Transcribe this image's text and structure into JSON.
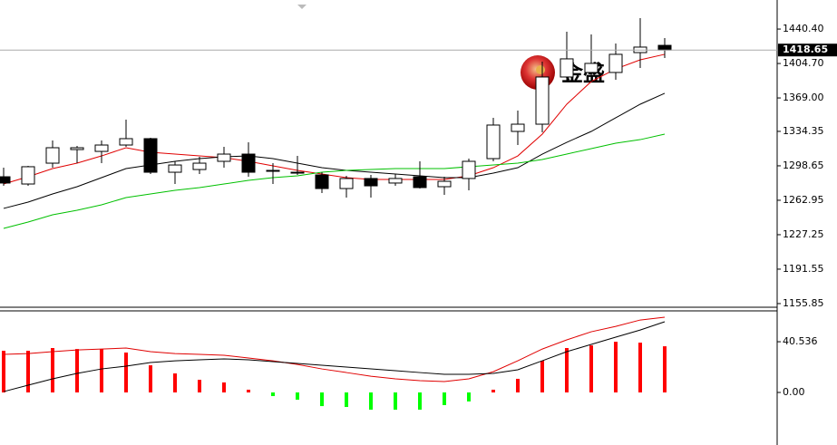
{
  "chart_data": [
    {
      "type": "candlestick",
      "watermark": "金盛",
      "last_price": 1418.65,
      "ylim": [
        1153,
        1463
      ],
      "yticks": [
        {
          "value": 1440.4,
          "label": "1440.40"
        },
        {
          "value": 1404.7,
          "label": "1404.70"
        },
        {
          "value": 1369,
          "label": "1369.00"
        },
        1334.35,
        1298.65,
        1262.95,
        1227.25,
        1191.55,
        1155.85
      ],
      "open": [
        1287.3,
        1279.8,
        1301.4,
        1315.5,
        1313.6,
        1320.2,
        1326.8,
        1292.0,
        1294.8,
        1303.3,
        1310.8,
        1293.0,
        1292.0,
        1289.2,
        1275.1,
        1285.5,
        1280.8,
        1287.3,
        1277.0,
        1285.5,
        1306.1,
        1334.3,
        1341.8,
        1390.7,
        1395.4,
        1395.4,
        1416.0,
        1423.5
      ],
      "high": [
        1296.7,
        1298.6,
        1324.9,
        1319.3,
        1324.9,
        1346.5,
        1327.7,
        1303.3,
        1308.0,
        1318.3,
        1323.0,
        1301.4,
        1308.9,
        1292.0,
        1288.3,
        1289.2,
        1290.2,
        1303.3,
        1287.3,
        1306.1,
        1348.4,
        1355.9,
        1406.6,
        1437.6,
        1434.8,
        1425.4,
        1451.7,
        1431.1
      ],
      "low": [
        1277.9,
        1277.9,
        1296.7,
        1301.4,
        1301.4,
        1318.3,
        1290.2,
        1279.8,
        1290.2,
        1296.7,
        1287.3,
        1279.8,
        1289.2,
        1270.4,
        1265.7,
        1265.7,
        1277.9,
        1275.1,
        1268.5,
        1273.2,
        1303.3,
        1320.2,
        1333.4,
        1386.0,
        1386.0,
        1387.8,
        1400.1,
        1410.4
      ],
      "close": [
        1280.8,
        1297.7,
        1317.4,
        1317.4,
        1320.2,
        1326.8,
        1292.0,
        1299.5,
        1301.4,
        1310.8,
        1292.0,
        1293.9,
        1291.1,
        1275.1,
        1285.5,
        1277.9,
        1285.5,
        1276.1,
        1282.6,
        1303.3,
        1340.9,
        1341.8,
        1390.7,
        1409.5,
        1404.8,
        1414.2,
        1421.7,
        1418.65
      ],
      "up_color": "#ffffff",
      "down_color": "#000000",
      "series": [
        {
          "color": "#e00000",
          "values": [
            1279.8,
            1287.3,
            1295.8,
            1301.4,
            1308.9,
            1317.4,
            1312.7,
            1310.8,
            1308.9,
            1307.1,
            1303.3,
            1298.6,
            1293.9,
            1290.2,
            1286.4,
            1284.5,
            1284.5,
            1284.5,
            1284.5,
            1288.3,
            1296.7,
            1308.9,
            1331.5,
            1362.5,
            1386.0,
            1399.1,
            1408.5,
            1414.2
          ]
        },
        {
          "color": "#000000",
          "values": [
            1254.5,
            1261.0,
            1269.5,
            1277.0,
            1286.4,
            1295.8,
            1299.5,
            1303.3,
            1306.1,
            1308.0,
            1308.9,
            1306.1,
            1301.4,
            1296.7,
            1293.9,
            1292.0,
            1290.2,
            1288.3,
            1286.4,
            1286.4,
            1291.1,
            1296.7,
            1310.8,
            1323.0,
            1334.3,
            1348.4,
            1362.5,
            1373.8
          ]
        },
        {
          "color": "#00c000",
          "values": [
            1233.8,
            1240.4,
            1247.9,
            1252.6,
            1258.2,
            1265.7,
            1269.5,
            1273.2,
            1276.1,
            1279.8,
            1283.6,
            1286.4,
            1288.3,
            1292.0,
            1293.9,
            1294.8,
            1295.8,
            1295.8,
            1295.8,
            1297.7,
            1299.5,
            1301.4,
            1305.2,
            1310.8,
            1316.5,
            1322.1,
            1325.8,
            1331.5
          ]
        }
      ]
    },
    {
      "type": "macd",
      "ylim": [
        -42,
        65.2
      ],
      "yticks": [
        40.536,
        {
          "value": 0,
          "label": "0.00"
        }
      ],
      "up_color": "#ff0000",
      "down_color": "#00ff00",
      "values": [
        33.3,
        33.3,
        35.5,
        34.7,
        34.7,
        31.9,
        21.7,
        15.2,
        10.1,
        8.0,
        2.2,
        -2.9,
        -5.8,
        -10.9,
        -11.6,
        -13.8,
        -13.8,
        -13.8,
        -10.1,
        -7.2,
        2.2,
        10.9,
        25.3,
        35.5,
        37.6,
        40.5,
        39.8,
        36.9
      ],
      "series": [
        {
          "color": "#e00000",
          "values": [
            30.4,
            31.1,
            32.6,
            34.0,
            34.7,
            35.5,
            32.6,
            31.1,
            30.4,
            29.7,
            27.5,
            25.3,
            22.4,
            18.8,
            15.9,
            13.0,
            10.9,
            9.4,
            8.7,
            10.9,
            16.6,
            25.3,
            34.7,
            42.0,
            48.5,
            52.8,
            57.9,
            60.1
          ]
        },
        {
          "color": "#000000",
          "values": [
            0.7,
            5.8,
            10.9,
            15.2,
            18.8,
            21.0,
            23.9,
            25.3,
            26.1,
            26.8,
            26.1,
            24.6,
            23.2,
            21.7,
            20.3,
            18.8,
            17.4,
            15.9,
            14.5,
            14.5,
            15.2,
            18.1,
            25.3,
            32.6,
            38.4,
            44.2,
            49.9,
            56.5
          ]
        }
      ]
    }
  ]
}
